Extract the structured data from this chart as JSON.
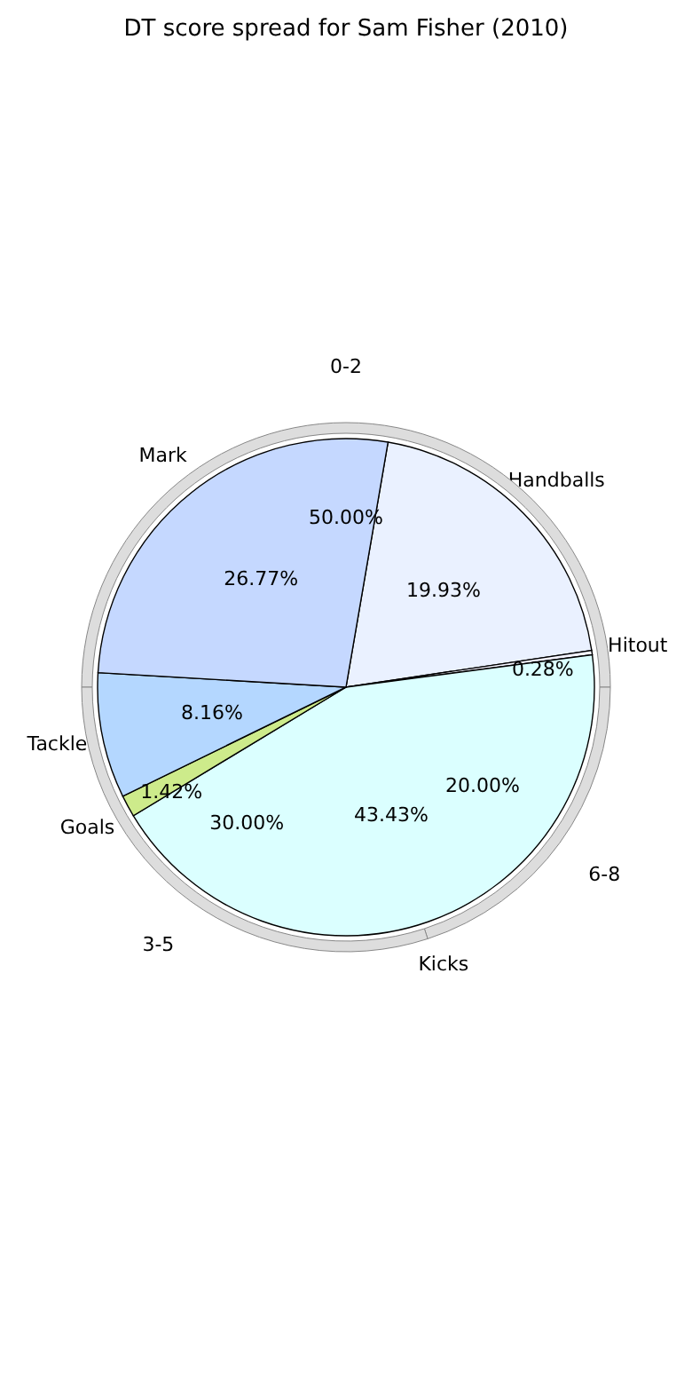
{
  "chart_data": [
    {
      "type": "pie",
      "title": "DT score spread for Sam Fisher (2010)",
      "categories": [
        "Handballs",
        "Hitout",
        "Kicks",
        "Goals",
        "Tackle",
        "Mark"
      ],
      "values": [
        19.93,
        0.28,
        43.43,
        1.42,
        8.16,
        26.77
      ],
      "colors": [
        "#eaf1ff",
        "#f4f4ff",
        "#dbffff",
        "#cdeb8b",
        "#b4d7ff",
        "#c5d8ff"
      ],
      "value_labels": [
        "19.93%",
        "0.28%",
        "43.43%",
        "1.42%",
        "8.16%",
        "26.77%"
      ]
    },
    {
      "type": "donut",
      "categories": [
        "0-2",
        "6-8",
        "3-5"
      ],
      "values": [
        50.0,
        20.0,
        30.0
      ],
      "value_labels": [
        "50.00%",
        "20.00%",
        "30.00%"
      ]
    }
  ]
}
